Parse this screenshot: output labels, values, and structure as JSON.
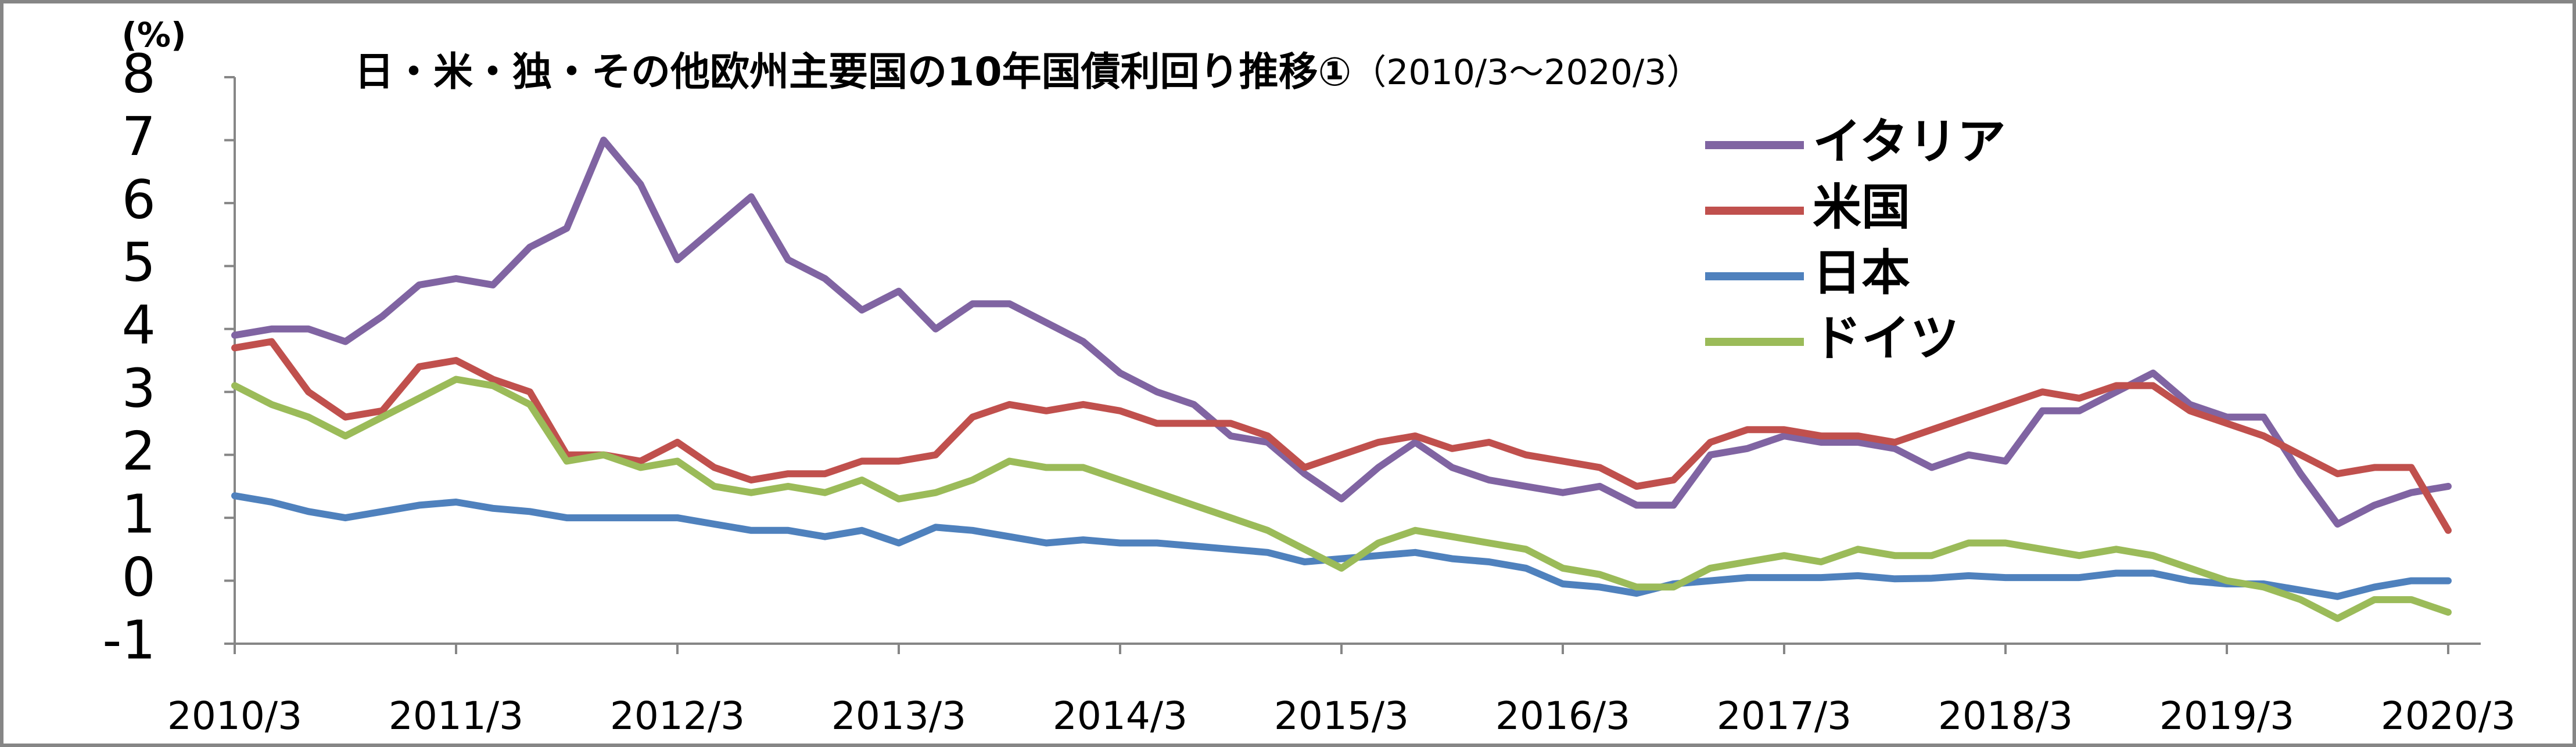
{
  "chart_data": {
    "type": "line",
    "title": "日・米・独・その他欧州主要国の10年国債利回り推移①",
    "subtitle": "（2010/3～2020/3）",
    "y_unit": "(%)",
    "x": [
      "2010/3",
      "2010/5",
      "2010/7",
      "2010/9",
      "2010/11",
      "2011/1",
      "2011/3",
      "2011/5",
      "2011/7",
      "2011/9",
      "2011/11",
      "2012/1",
      "2012/3",
      "2012/5",
      "2012/7",
      "2012/9",
      "2012/11",
      "2013/1",
      "2013/3",
      "2013/5",
      "2013/7",
      "2013/9",
      "2013/11",
      "2014/1",
      "2014/3",
      "2014/5",
      "2014/7",
      "2014/9",
      "2014/11",
      "2015/1",
      "2015/3",
      "2015/5",
      "2015/7",
      "2015/9",
      "2015/11",
      "2016/1",
      "2016/3",
      "2016/5",
      "2016/7",
      "2016/9",
      "2016/11",
      "2017/1",
      "2017/3",
      "2017/5",
      "2017/7",
      "2017/9",
      "2017/11",
      "2018/1",
      "2018/3",
      "2018/5",
      "2018/7",
      "2018/9",
      "2018/11",
      "2019/1",
      "2019/3",
      "2019/5",
      "2019/7",
      "2019/9",
      "2019/11",
      "2020/1",
      "2020/3"
    ],
    "xticks": [
      "2010/3",
      "2011/3",
      "2012/3",
      "2013/3",
      "2014/3",
      "2015/3",
      "2016/3",
      "2017/3",
      "2018/3",
      "2019/3",
      "2020/3"
    ],
    "ylim": [
      -1,
      8
    ],
    "yticks": [
      -1,
      0,
      1,
      2,
      3,
      4,
      5,
      6,
      7,
      8
    ],
    "negative_tick_color": "#ff0000",
    "grid": false,
    "legend": "upper right",
    "series": [
      {
        "name": "イタリア",
        "color": "#8064a2",
        "values": [
          3.9,
          4.0,
          4.0,
          3.8,
          4.2,
          4.7,
          4.8,
          4.7,
          5.3,
          5.6,
          7.0,
          6.3,
          5.1,
          5.6,
          6.1,
          5.1,
          4.8,
          4.3,
          4.6,
          4.0,
          4.4,
          4.4,
          4.1,
          3.8,
          3.3,
          3.0,
          2.8,
          2.3,
          2.2,
          1.7,
          1.3,
          1.8,
          2.2,
          1.8,
          1.6,
          1.5,
          1.4,
          1.5,
          1.2,
          1.2,
          2.0,
          2.1,
          2.3,
          2.2,
          2.2,
          2.1,
          1.8,
          2.0,
          1.9,
          2.7,
          2.7,
          3.0,
          3.3,
          2.8,
          2.6,
          2.6,
          1.7,
          0.9,
          1.2,
          1.4,
          1.5
        ]
      },
      {
        "name": "米国",
        "color": "#c0504d",
        "values": [
          3.7,
          3.8,
          3.0,
          2.6,
          2.7,
          3.4,
          3.5,
          3.2,
          3.0,
          2.0,
          2.0,
          1.9,
          2.2,
          1.8,
          1.6,
          1.7,
          1.7,
          1.9,
          1.9,
          2.0,
          2.6,
          2.8,
          2.7,
          2.8,
          2.7,
          2.5,
          2.5,
          2.5,
          2.3,
          1.8,
          2.0,
          2.2,
          2.3,
          2.1,
          2.2,
          2.0,
          1.9,
          1.8,
          1.5,
          1.6,
          2.2,
          2.4,
          2.4,
          2.3,
          2.3,
          2.2,
          2.4,
          2.6,
          2.8,
          3.0,
          2.9,
          3.1,
          3.1,
          2.7,
          2.5,
          2.3,
          2.0,
          1.7,
          1.8,
          1.8,
          0.8
        ]
      },
      {
        "name": "日本",
        "color": "#4f81bd",
        "values": [
          1.35,
          1.25,
          1.1,
          1.0,
          1.1,
          1.2,
          1.25,
          1.15,
          1.1,
          1.0,
          1.0,
          1.0,
          1.0,
          0.9,
          0.8,
          0.8,
          0.7,
          0.8,
          0.6,
          0.85,
          0.8,
          0.7,
          0.6,
          0.65,
          0.6,
          0.6,
          0.55,
          0.5,
          0.45,
          0.3,
          0.35,
          0.4,
          0.45,
          0.35,
          0.3,
          0.2,
          -0.05,
          -0.1,
          -0.2,
          -0.05,
          0.0,
          0.05,
          0.05,
          0.05,
          0.08,
          0.03,
          0.04,
          0.08,
          0.05,
          0.05,
          0.05,
          0.12,
          0.12,
          0.0,
          -0.05,
          -0.05,
          -0.15,
          -0.25,
          -0.1,
          0.0,
          0.0
        ]
      },
      {
        "name": "ドイツ",
        "color": "#9bbb59",
        "values": [
          3.1,
          2.8,
          2.6,
          2.3,
          2.6,
          2.9,
          3.2,
          3.1,
          2.8,
          1.9,
          2.0,
          1.8,
          1.9,
          1.5,
          1.4,
          1.5,
          1.4,
          1.6,
          1.3,
          1.4,
          1.6,
          1.9,
          1.8,
          1.8,
          1.6,
          1.4,
          1.2,
          1.0,
          0.8,
          0.5,
          0.2,
          0.6,
          0.8,
          0.7,
          0.6,
          0.5,
          0.2,
          0.1,
          -0.1,
          -0.1,
          0.2,
          0.3,
          0.4,
          0.3,
          0.5,
          0.4,
          0.4,
          0.6,
          0.6,
          0.5,
          0.4,
          0.5,
          0.4,
          0.2,
          0.0,
          -0.1,
          -0.3,
          -0.6,
          -0.3,
          -0.3,
          -0.5
        ]
      }
    ]
  }
}
